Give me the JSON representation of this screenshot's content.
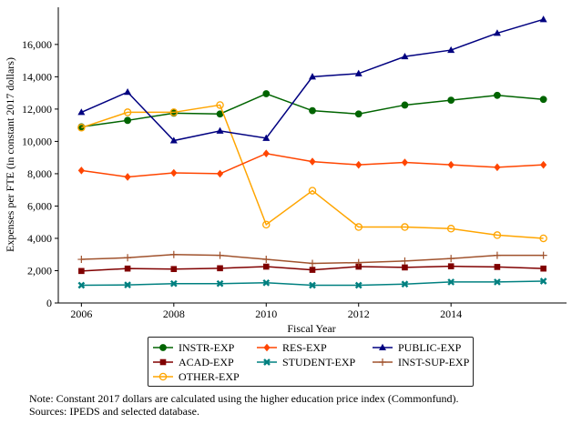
{
  "chart_data": {
    "type": "line",
    "title": "",
    "xlabel": "Fiscal Year",
    "ylabel": "Expenses per FTE (in constant 2017 dollars)",
    "x": [
      2006,
      2007,
      2008,
      2009,
      2010,
      2011,
      2012,
      2013,
      2014,
      2015,
      2016
    ],
    "xticks": [
      "2006",
      "2008",
      "2010",
      "2012",
      "2014"
    ],
    "yticks": [
      "0",
      "2,000",
      "4,000",
      "6,000",
      "8,000",
      "10,000",
      "12,000",
      "14,000",
      "16,000"
    ],
    "xlim": [
      2005.5,
      2016.5
    ],
    "ylim": [
      0,
      18300
    ],
    "grid": false,
    "legend_placement": "bottom",
    "series": [
      {
        "name": "INSTR-EXP",
        "color": "#006400",
        "marker": "circle",
        "values": [
          10900,
          11300,
          11750,
          11700,
          12950,
          11900,
          11700,
          12250,
          12550,
          12850,
          12600
        ]
      },
      {
        "name": "ACAD-EXP",
        "color": "#800000",
        "marker": "square",
        "values": [
          1980,
          2130,
          2100,
          2150,
          2250,
          2050,
          2250,
          2200,
          2270,
          2230,
          2130
        ]
      },
      {
        "name": "OTHER-EXP",
        "color": "#FFA500",
        "marker": "circle-open",
        "values": [
          10850,
          11800,
          11800,
          12250,
          4850,
          6950,
          4700,
          4700,
          4600,
          4200,
          4000
        ]
      },
      {
        "name": "RES-EXP",
        "color": "#FF4500",
        "marker": "diamond",
        "values": [
          8200,
          7800,
          8050,
          8000,
          9250,
          8750,
          8550,
          8700,
          8550,
          8400,
          8550
        ]
      },
      {
        "name": "STUDENT-EXP",
        "color": "#008080",
        "marker": "x",
        "values": [
          1100,
          1120,
          1200,
          1200,
          1250,
          1100,
          1100,
          1170,
          1300,
          1300,
          1350
        ]
      },
      {
        "name": "PUBLIC-EXP",
        "color": "#000080",
        "marker": "triangle",
        "values": [
          11800,
          13050,
          10050,
          10650,
          10200,
          14000,
          14200,
          15250,
          15650,
          16700,
          17550
        ]
      },
      {
        "name": "INST-SUP-EXP",
        "color": "#A0522D",
        "marker": "plus",
        "values": [
          2700,
          2800,
          3000,
          2950,
          2700,
          2450,
          2500,
          2600,
          2750,
          2950,
          2950
        ]
      }
    ]
  },
  "notes": {
    "line1": "Note: Constant 2017 dollars are calculated using the higher education price index (Commonfund).",
    "line2": "Sources: IPEDS and selected database."
  }
}
